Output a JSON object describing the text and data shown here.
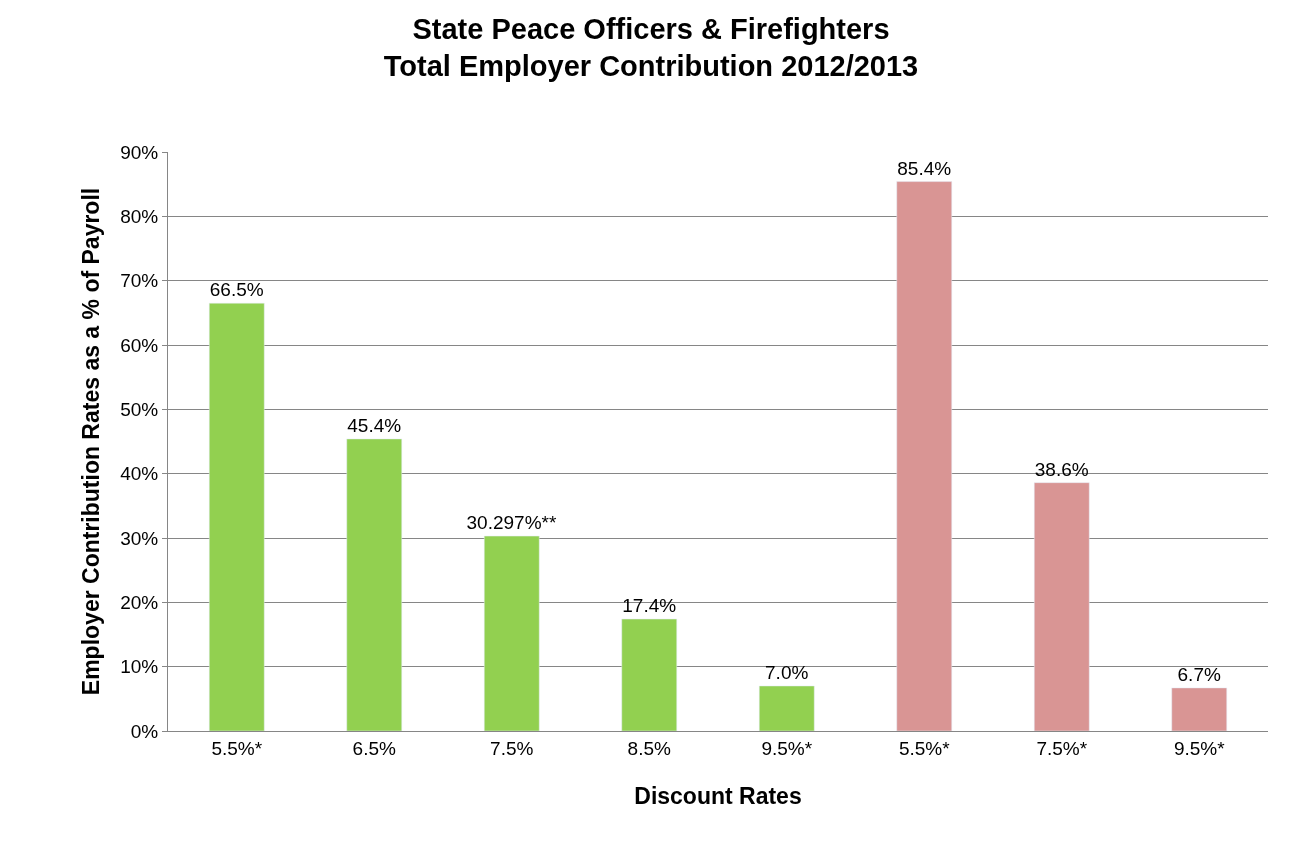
{
  "chart_data": {
    "type": "bar",
    "title": "State Peace Officers & Firefighters\nTotal Employer Contribution 2012/2013",
    "xlabel": "Discount Rates",
    "ylabel": "Employer Contribution Rates as a % of Payroll",
    "categories": [
      "5.5%*",
      "6.5%",
      "7.5%",
      "8.5%",
      "9.5%*",
      "5.5%*",
      "7.5%*",
      "9.5%*"
    ],
    "values": [
      66.5,
      45.4,
      30.297,
      17.4,
      7.0,
      85.4,
      38.6,
      6.7
    ],
    "value_labels": [
      "66.5%",
      "45.4%",
      "30.297%**",
      "17.4%",
      "7.0%",
      "85.4%",
      "38.6%",
      "6.7%"
    ],
    "colors": [
      "#92d050",
      "#92d050",
      "#92d050",
      "#92d050",
      "#92d050",
      "#d99594",
      "#d99594",
      "#d99594"
    ],
    "ylim": [
      0,
      90
    ],
    "yticks": [
      {
        "value": 0,
        "label": "0%"
      },
      {
        "value": 10,
        "label": "10%"
      },
      {
        "value": 20,
        "label": "20%"
      },
      {
        "value": 30,
        "label": "30%"
      },
      {
        "value": 40,
        "label": "40%"
      },
      {
        "value": 50,
        "label": "50%"
      },
      {
        "value": 60,
        "label": "60%"
      },
      {
        "value": 70,
        "label": "70%"
      },
      {
        "value": 80,
        "label": "80%"
      },
      {
        "value": 90,
        "label": "90%"
      }
    ],
    "grid": "y",
    "legend": false
  }
}
